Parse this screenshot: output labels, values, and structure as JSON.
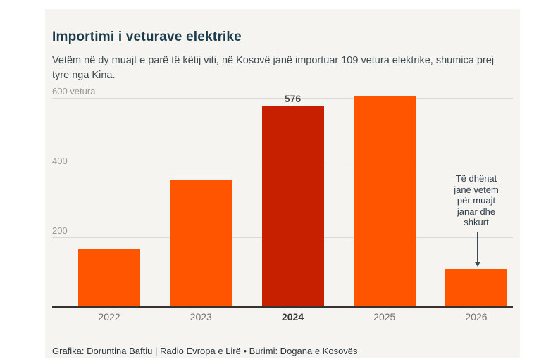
{
  "card": {
    "title": "Importimi i veturave elektrike",
    "subtitle": "Vetëm në dy muajt e parë të këtij viti, në Kosovë janë importuar 109 vetura elektrike, shumica prej tyre nga Kina.",
    "footer": "Grafika: Doruntina Baftiu | Radio Evropa e Lirë • Burimi: Dogana e Kosovës"
  },
  "chart_data": {
    "type": "bar",
    "title": "Importimi i veturave elektrike",
    "categories": [
      "2022",
      "2023",
      "2024",
      "2025",
      "2026"
    ],
    "values": [
      165,
      366,
      576,
      606,
      109
    ],
    "bar_labels": {
      "2024": "576"
    },
    "highlighted_category": "2024",
    "unit": "vetura",
    "y_axis": [
      {
        "value": 600,
        "label": "600 vetura"
      },
      {
        "value": 400,
        "label": "400"
      },
      {
        "value": 200,
        "label": "200"
      }
    ],
    "ylim": [
      0,
      630
    ],
    "grid": true,
    "colors": {
      "default": "#ff5400",
      "highlight": "#c62000"
    },
    "annotation": {
      "lines": [
        "Të dhënat",
        "janë vetëm",
        "për muajt",
        "janar dhe",
        "shkurt"
      ],
      "target_category": "2026"
    }
  }
}
